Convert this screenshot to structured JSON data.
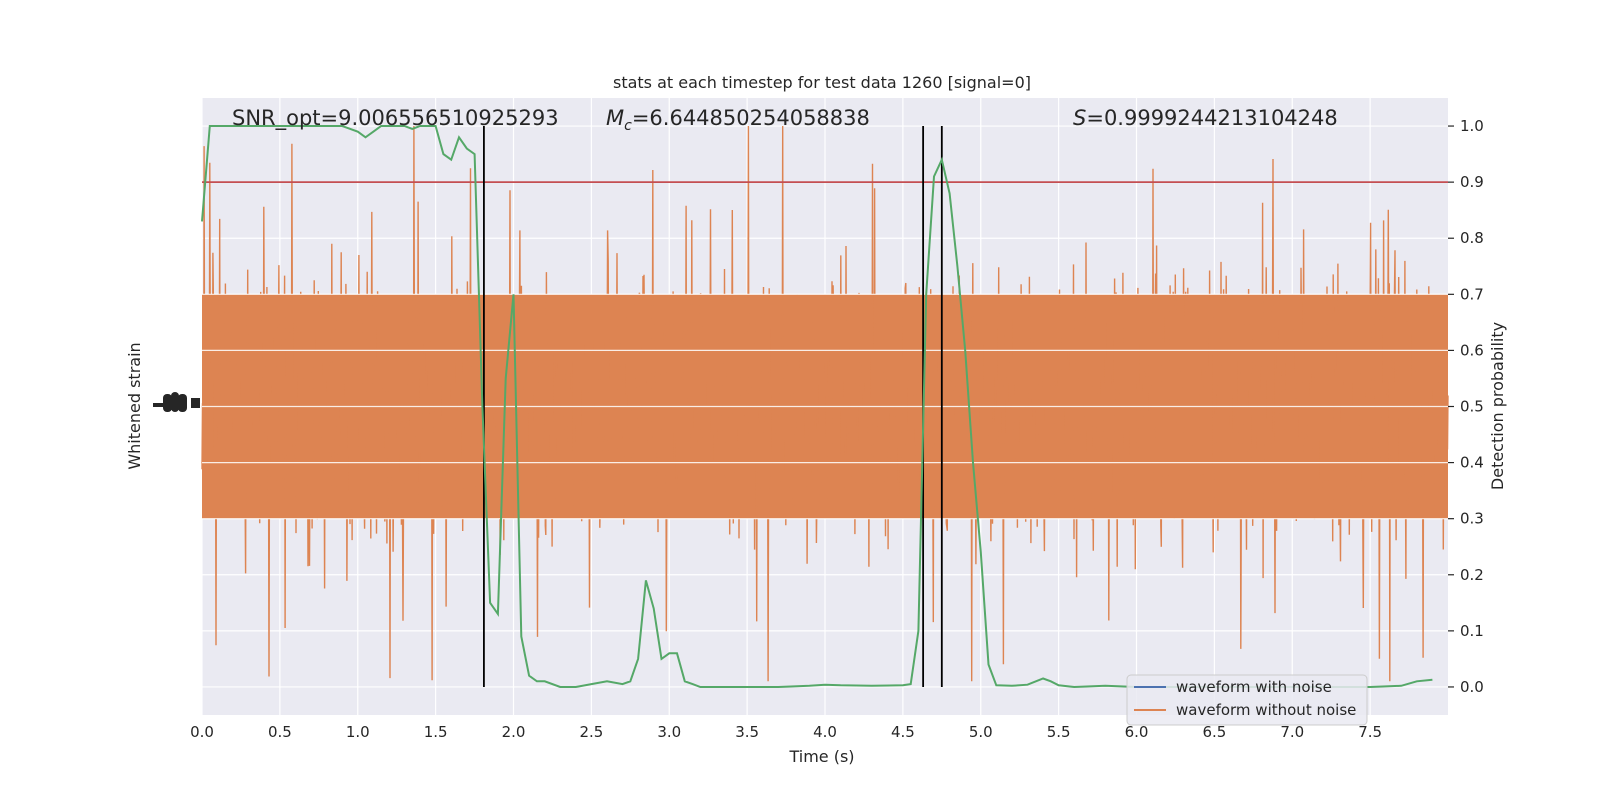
{
  "chart_data": {
    "type": "line",
    "title": "stats at each timestep for test data 1260 [signal=0]",
    "xlabel": "Time (s)",
    "ylabel_left": "Whitened strain",
    "ylabel_right": "Detection probability",
    "xlim": [
      0.0,
      8.0
    ],
    "ylim_right": [
      -0.05,
      1.05
    ],
    "x_ticks": [
      "0.0",
      "0.5",
      "1.0",
      "1.5",
      "2.0",
      "2.5",
      "3.0",
      "3.5",
      "4.0",
      "4.5",
      "5.0",
      "5.5",
      "6.0",
      "6.5",
      "7.0",
      "7.5"
    ],
    "x_tick_values": [
      0.0,
      0.5,
      1.0,
      1.5,
      2.0,
      2.5,
      3.0,
      3.5,
      4.0,
      4.5,
      5.0,
      5.5,
      6.0,
      6.5,
      7.0,
      7.5
    ],
    "y_right_ticks": [
      "0.0",
      "0.1",
      "0.2",
      "0.3",
      "0.4",
      "0.5",
      "0.6",
      "0.7",
      "0.8",
      "0.9",
      "1.0"
    ],
    "y_right_tick_values": [
      0.0,
      0.1,
      0.2,
      0.3,
      0.4,
      0.5,
      0.6,
      0.7,
      0.8,
      0.9,
      1.0
    ],
    "grid": true,
    "legend_position": "lower-right",
    "threshold": 0.9,
    "vertical_lines": [
      1.81,
      4.63,
      4.75
    ],
    "annotations": {
      "snr": "SNR_opt=9.006556510925293",
      "mc_symbol": "M",
      "mc_sub": "c",
      "mc_value": "=6.644850254058838",
      "s_symbol": "S",
      "s_value": "=0.9999244213104248"
    },
    "series": [
      {
        "name": "waveform with noise",
        "color": "#4c72b0"
      },
      {
        "name": "waveform without noise",
        "color": "#dd8452"
      }
    ],
    "detection_probability": {
      "color": "#55a868",
      "x": [
        0.0,
        0.05,
        0.1,
        0.2,
        0.3,
        0.4,
        0.5,
        0.6,
        0.7,
        0.8,
        0.9,
        1.0,
        1.05,
        1.1,
        1.15,
        1.2,
        1.25,
        1.3,
        1.35,
        1.4,
        1.45,
        1.5,
        1.55,
        1.6,
        1.65,
        1.7,
        1.75,
        1.8,
        1.85,
        1.9,
        1.95,
        2.0,
        2.05,
        2.1,
        2.15,
        2.2,
        2.3,
        2.4,
        2.5,
        2.6,
        2.7,
        2.75,
        2.8,
        2.85,
        2.9,
        2.95,
        3.0,
        3.05,
        3.1,
        3.15,
        3.2,
        3.3,
        3.5,
        3.7,
        3.9,
        4.0,
        4.1,
        4.3,
        4.5,
        4.55,
        4.6,
        4.65,
        4.7,
        4.75,
        4.8,
        4.85,
        4.9,
        4.95,
        5.0,
        5.05,
        5.1,
        5.2,
        5.3,
        5.4,
        5.45,
        5.5,
        5.6,
        5.8,
        6.0,
        6.5,
        7.0,
        7.5,
        7.7,
        7.8,
        7.9
      ],
      "y": [
        0.83,
        1.0,
        1.0,
        1.0,
        1.0,
        1.0,
        1.0,
        1.0,
        1.0,
        1.0,
        1.0,
        0.99,
        0.98,
        0.99,
        1.0,
        1.0,
        1.0,
        1.0,
        0.995,
        1.0,
        1.0,
        1.0,
        0.95,
        0.94,
        0.98,
        0.96,
        0.95,
        0.5,
        0.15,
        0.13,
        0.55,
        0.7,
        0.09,
        0.02,
        0.01,
        0.01,
        0.0,
        0.0,
        0.005,
        0.01,
        0.005,
        0.01,
        0.05,
        0.19,
        0.14,
        0.05,
        0.06,
        0.06,
        0.01,
        0.005,
        0.0,
        0.0,
        0.0,
        0.0,
        0.002,
        0.004,
        0.003,
        0.002,
        0.003,
        0.005,
        0.1,
        0.7,
        0.91,
        0.94,
        0.88,
        0.75,
        0.6,
        0.4,
        0.24,
        0.04,
        0.003,
        0.002,
        0.004,
        0.015,
        0.01,
        0.003,
        0.0,
        0.002,
        0.0,
        0.0,
        0.0,
        0.0,
        0.002,
        0.01,
        0.013
      ]
    },
    "strain_without_noise": {
      "description_values": "dense whitened strain samples mapped to the right axis range",
      "center": 0.5,
      "typical_low": 0.3,
      "typical_high": 0.7,
      "peak_high": 1.0,
      "peak_low": 0.01
    }
  }
}
